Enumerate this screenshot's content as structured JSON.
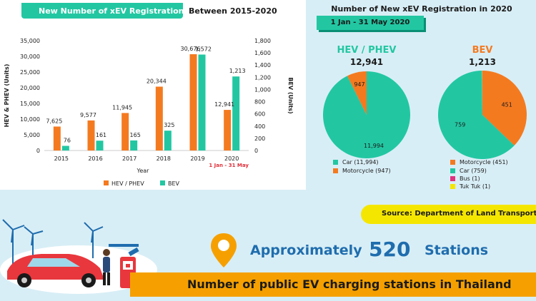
{
  "left_header": {
    "highlight": "New Number of xEV Registration",
    "plain": "Between 2015-2020"
  },
  "right_header": {
    "title": "Number of New xEV Registration in 2020",
    "date_range": "1 Jan - 31 May 2020"
  },
  "colors": {
    "hev": "#f47a20",
    "bev": "#22c7a2",
    "teal_dark": "#0a8f74",
    "bus": "#e0307f",
    "tuktuk": "#f5e600",
    "blue": "#1f6dae"
  },
  "chart_data": [
    {
      "type": "bar",
      "title": "New Number of xEV Registration Between 2015-2020",
      "xlabel": "Year",
      "ylabel": "HEV & PHEV (Units)",
      "y2label": "BEV (Units)",
      "categories": [
        "2015",
        "2016",
        "2017",
        "2018",
        "2019",
        "2020"
      ],
      "category_note": "1 Jan - 31 May",
      "ylim": [
        0,
        35000
      ],
      "y2lim": [
        0,
        1800
      ],
      "yticks": [
        "0",
        "5,000",
        "10,000",
        "15,000",
        "20,000",
        "25,000",
        "30,000",
        "35,000"
      ],
      "y2ticks": [
        "0",
        "200",
        "400",
        "600",
        "800",
        "1,000",
        "1,200",
        "1,400",
        "1,600",
        "1,800"
      ],
      "series": [
        {
          "name": "HEV / PHEV",
          "axis": "left",
          "values": [
            7625,
            9577,
            11945,
            20344,
            30676,
            12941
          ],
          "labels": [
            "7,625",
            "9,577",
            "11,945",
            "20,344",
            "30,676",
            "12,941"
          ]
        },
        {
          "name": "BEV",
          "axis": "right",
          "values": [
            76,
            161,
            165,
            325,
            1572,
            1213
          ],
          "labels": [
            "76",
            "161",
            "165",
            "325",
            "1,572",
            "1,213"
          ]
        }
      ],
      "legend": [
        "HEV / PHEV",
        "BEV"
      ]
    },
    {
      "type": "pie",
      "title": "HEV / PHEV",
      "total": "12,941",
      "slices": [
        {
          "name": "Car (11,994)",
          "value": 11994,
          "label": "11,994"
        },
        {
          "name": "Motorcycle (947)",
          "value": 947,
          "label": "947"
        }
      ]
    },
    {
      "type": "pie",
      "title": "BEV",
      "total": "1,213",
      "slices": [
        {
          "name": "Motorcycle (451)",
          "value": 451,
          "label": "451"
        },
        {
          "name": "Car (759)",
          "value": 759,
          "label": "759"
        },
        {
          "name": "Bus (1)",
          "value": 1,
          "label": ""
        },
        {
          "name": "Tuk Tuk (1)",
          "value": 1,
          "label": ""
        }
      ]
    }
  ],
  "source": "Source: Department of Land Transport",
  "stations": {
    "prefix": "Approximately",
    "number": "520",
    "suffix": "Stations"
  },
  "footer": "Number of public EV charging stations in Thailand"
}
